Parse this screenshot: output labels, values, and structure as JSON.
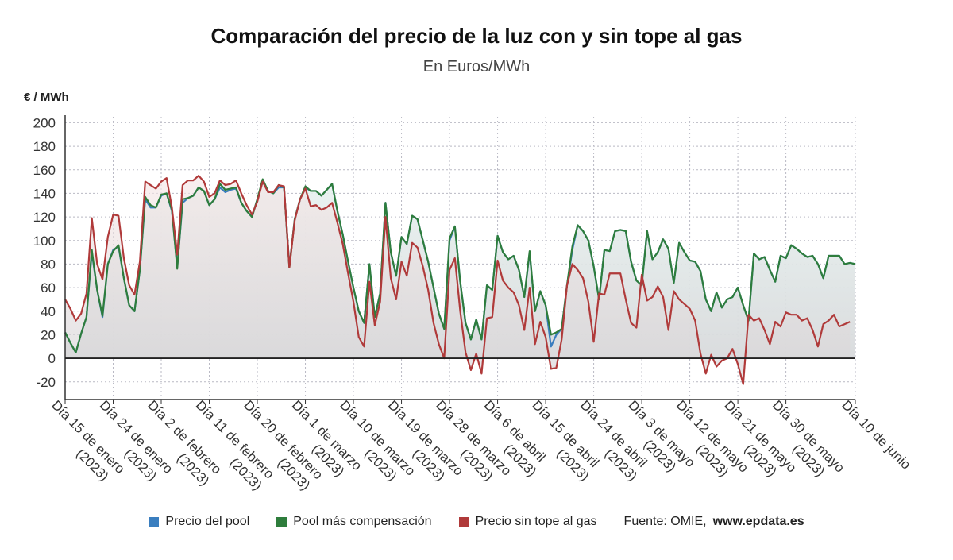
{
  "chart_data": {
    "type": "line",
    "title": "Comparación del precio de la luz con y sin tope al gas",
    "subtitle": "En Euros/MWh",
    "ylabel": "€ / MWh",
    "ylim": [
      -35,
      205
    ],
    "yticks": [
      200,
      180,
      160,
      140,
      120,
      100,
      80,
      60,
      40,
      20,
      0,
      -20
    ],
    "grid": true,
    "legend_position": "bottom",
    "x_start": "2023-01-15",
    "x_tick_labels": [
      "Día 15 de enero (2023)",
      "Día 24 de enero (2023)",
      "Día 2 de febrero (2023)",
      "Día 11 de febrero (2023)",
      "Día 20 de febrero (2023)",
      "Día 1 de marzo (2023)",
      "Día 10 de marzo (2023)",
      "Día 19 de marzo (2023)",
      "Día 28 de marzo (2023)",
      "Día 6 de abril (2023)",
      "Día 15 de abril (2023)",
      "Día 24 de abril (2023)",
      "Día 3 de mayo (2023)",
      "Día 12 de mayo (2023)",
      "Día 21 de mayo (2023)",
      "Día 30 de mayo (2023)",
      "Día 10 de junio"
    ],
    "series": [
      {
        "name": "Precio del pool",
        "color": "#3a7ebf",
        "values": [
          22,
          13,
          5,
          21,
          35,
          90,
          58,
          35,
          80,
          92,
          95,
          68,
          45,
          40,
          75,
          135,
          128,
          128,
          138,
          140,
          125,
          78,
          132,
          136,
          138,
          145,
          142,
          130,
          135,
          145,
          141,
          143,
          144,
          132,
          125,
          120,
          135,
          150,
          142,
          140,
          145,
          145,
          78,
          118,
          135,
          145,
          142,
          142,
          138,
          143,
          148,
          125,
          105,
          82,
          60,
          40,
          30,
          80,
          35,
          55,
          132,
          90,
          70,
          103,
          97,
          121,
          118,
          100,
          82,
          60,
          38,
          25,
          100,
          112,
          65,
          30,
          16,
          33,
          16,
          62,
          58,
          104,
          90,
          84,
          87,
          75,
          52,
          90,
          40,
          57,
          45,
          10,
          20,
          25,
          62,
          92,
          113,
          108,
          100,
          78,
          50,
          92,
          91,
          108,
          109,
          108,
          82,
          66,
          62,
          108,
          84,
          90,
          101,
          93,
          64,
          98,
          90,
          83,
          82,
          74,
          50,
          40,
          56,
          43,
          50,
          52,
          60,
          45,
          32,
          89,
          84,
          86,
          75,
          65,
          87,
          85,
          96,
          93,
          89,
          86,
          87,
          80,
          68,
          87,
          87,
          87,
          80,
          81,
          80
        ]
      },
      {
        "name": "Pool más compensación",
        "color": "#2e7d3c",
        "values": [
          22,
          13,
          5,
          21,
          35,
          92,
          58,
          36,
          80,
          91,
          96,
          68,
          45,
          40,
          75,
          137,
          130,
          128,
          139,
          140,
          126,
          76,
          135,
          136,
          138,
          145,
          142,
          130,
          135,
          148,
          143,
          144,
          145,
          132,
          125,
          120,
          135,
          152,
          142,
          140,
          147,
          145,
          77,
          118,
          135,
          146,
          142,
          142,
          138,
          143,
          148,
          125,
          105,
          82,
          60,
          40,
          30,
          80,
          35,
          55,
          132,
          90,
          70,
          103,
          97,
          121,
          118,
          100,
          82,
          60,
          38,
          25,
          102,
          112,
          65,
          30,
          16,
          33,
          16,
          62,
          58,
          104,
          90,
          84,
          87,
          75,
          52,
          91,
          40,
          57,
          45,
          20,
          22,
          25,
          62,
          95,
          113,
          108,
          100,
          78,
          50,
          92,
          91,
          108,
          109,
          108,
          82,
          66,
          62,
          108,
          84,
          90,
          101,
          93,
          64,
          98,
          90,
          83,
          82,
          74,
          50,
          40,
          56,
          43,
          50,
          52,
          60,
          45,
          32,
          89,
          84,
          86,
          75,
          65,
          87,
          85,
          96,
          93,
          89,
          86,
          87,
          80,
          68,
          87,
          87,
          87,
          80,
          81,
          80
        ]
      },
      {
        "name": "Precio sin tope al gas",
        "color": "#b03a3a",
        "values": [
          50,
          42,
          32,
          38,
          55,
          119,
          80,
          67,
          103,
          122,
          121,
          85,
          62,
          54,
          82,
          150,
          147,
          144,
          150,
          153,
          128,
          88,
          147,
          151,
          151,
          155,
          150,
          137,
          140,
          151,
          147,
          148,
          151,
          140,
          130,
          122,
          133,
          150,
          141,
          141,
          147,
          146,
          77,
          117,
          135,
          144,
          129,
          130,
          126,
          128,
          132,
          115,
          97,
          72,
          48,
          18,
          10,
          65,
          28,
          48,
          120,
          68,
          50,
          82,
          70,
          98,
          94,
          78,
          58,
          30,
          12,
          0,
          75,
          85,
          40,
          5,
          -10,
          4,
          -13,
          34,
          35,
          83,
          66,
          60,
          56,
          45,
          24,
          60,
          12,
          31,
          18,
          -9,
          -8,
          16,
          62,
          80,
          75,
          68,
          48,
          14,
          55,
          54,
          72,
          72,
          72,
          50,
          30,
          26,
          71,
          49,
          52,
          61,
          52,
          24,
          57,
          50,
          46,
          42,
          32,
          4,
          -13,
          3,
          -7,
          -2,
          0,
          8,
          -5,
          -22,
          37,
          32,
          34,
          24,
          12,
          31,
          27,
          39,
          37,
          37,
          32,
          34,
          24,
          10,
          29,
          32,
          37,
          27,
          29,
          31
        ]
      }
    ],
    "source_label": "Fuente: OMIE,",
    "source_site": "www.epdata.es"
  },
  "colors": {
    "grid": "#b9b9c4",
    "axis": "#333333",
    "zero_line": "#222222"
  }
}
